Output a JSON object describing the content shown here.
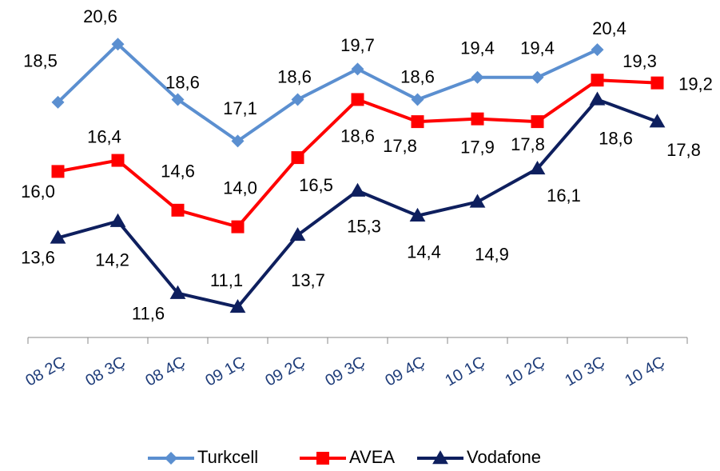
{
  "chart_data": {
    "type": "line",
    "categories": [
      "08 2Ç",
      "08 3Ç",
      "08 4Ç",
      "09 1Ç",
      "09 2Ç",
      "09 3Ç",
      "09 4Ç",
      "10 1Ç",
      "10 2Ç",
      "10 3Ç",
      "10 4Ç"
    ],
    "series": [
      {
        "name": "Turkcell",
        "color": "#5b8fd0",
        "marker": "diamond",
        "values": [
          18.5,
          20.6,
          18.6,
          17.1,
          18.6,
          19.7,
          18.6,
          19.4,
          19.4,
          20.4,
          null
        ],
        "value_labels": [
          "18,5",
          "20,6",
          "18,6",
          "17,1",
          "18,6",
          "19,7",
          "18,6",
          "19,4",
          "19,4",
          "20,4",
          null
        ]
      },
      {
        "name": "AVEA",
        "color": "#ff0000",
        "marker": "square",
        "values": [
          16.0,
          16.4,
          14.6,
          14.0,
          16.5,
          18.6,
          17.8,
          17.9,
          17.8,
          19.3,
          19.2
        ],
        "value_labels": [
          "16,0",
          "16,4",
          "14,6",
          "14,0",
          "16,5",
          "18,6",
          "17,8",
          "17,9",
          "17,8",
          "19,3",
          "19,2"
        ]
      },
      {
        "name": "Vodafone",
        "color": "#0e1f5e",
        "marker": "triangle",
        "values": [
          13.6,
          14.2,
          11.6,
          11.1,
          13.7,
          15.3,
          14.4,
          14.9,
          16.1,
          18.6,
          17.8
        ],
        "value_labels": [
          "13,6",
          "14,2",
          "11,6",
          "11,1",
          "13,7",
          "15,3",
          "14,4",
          "14,9",
          "16,1",
          "18,6",
          "17,8"
        ]
      }
    ],
    "ylim": [
      10,
      22
    ],
    "legend": "bottom"
  }
}
